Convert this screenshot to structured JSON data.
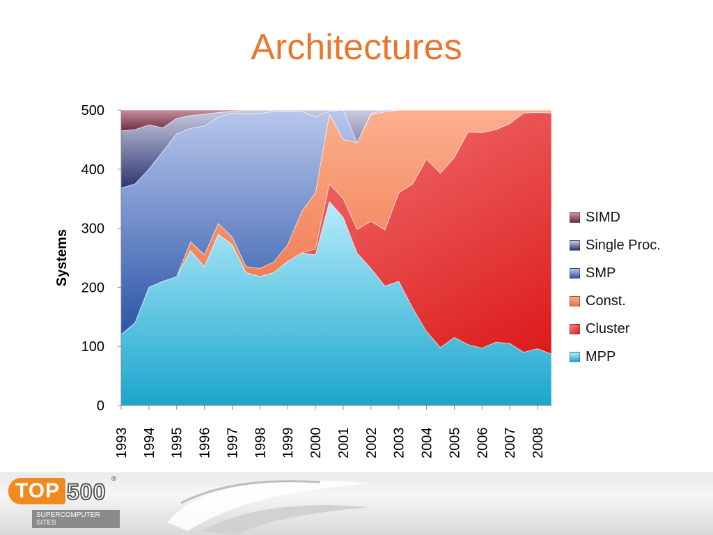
{
  "slide": {
    "title": "Architectures"
  },
  "logo": {
    "name": "TOP500",
    "tagline": "SUPERCOMPUTER SITES",
    "mark": "®"
  },
  "chart_data": {
    "type": "area",
    "stacked": true,
    "ylabel": "Systems",
    "xlabel": "",
    "ylim": [
      0,
      500
    ],
    "yticks": [
      0,
      100,
      200,
      300,
      400,
      500
    ],
    "x_tick_labels": [
      "1993",
      "1994",
      "1995",
      "1996",
      "1997",
      "1998",
      "1999",
      "2000",
      "2001",
      "2002",
      "2003",
      "2004",
      "2005",
      "2006",
      "2007",
      "2008"
    ],
    "x": [
      1993.0,
      1993.5,
      1994.0,
      1994.5,
      1995.0,
      1995.5,
      1996.0,
      1996.5,
      1997.0,
      1997.5,
      1998.0,
      1998.5,
      1999.0,
      1999.5,
      2000.0,
      2000.5,
      2001.0,
      2001.5,
      2002.0,
      2002.5,
      2003.0,
      2003.5,
      2004.0,
      2004.5,
      2005.0,
      2005.5,
      2006.0,
      2006.5,
      2007.0,
      2007.5,
      2008.0,
      2008.5
    ],
    "legend_position": "right",
    "series": [
      {
        "name": "MPP",
        "color": "#5bc8e8",
        "values": [
          120,
          140,
          200,
          210,
          218,
          262,
          235,
          290,
          272,
          225,
          218,
          225,
          244,
          258,
          255,
          345,
          318,
          258,
          232,
          202,
          210,
          165,
          125,
          98,
          115,
          103,
          97,
          107,
          105,
          90,
          96,
          87
        ]
      },
      {
        "name": "Cluster",
        "color": "#e84848",
        "values": [
          0,
          0,
          0,
          0,
          0,
          0,
          0,
          0,
          0,
          0,
          0,
          0,
          0,
          0,
          10,
          30,
          32,
          40,
          80,
          95,
          150,
          210,
          292,
          295,
          305,
          360,
          365,
          360,
          372,
          405,
          400,
          408
        ]
      },
      {
        "name": "Const.",
        "color": "#f4845a",
        "values": [
          0,
          0,
          0,
          0,
          0,
          15,
          20,
          18,
          13,
          10,
          14,
          18,
          28,
          70,
          95,
          118,
          100,
          147,
          180,
          200,
          140,
          125,
          83,
          107,
          80,
          37,
          38,
          33,
          23,
          5,
          4,
          5
        ]
      },
      {
        "name": "SMP",
        "color": "#8fa3d8",
        "values": [
          248,
          235,
          200,
          220,
          242,
          192,
          218,
          180,
          210,
          258,
          262,
          255,
          225,
          170,
          128,
          5,
          50,
          0,
          2,
          3,
          0,
          0,
          0,
          0,
          0,
          0,
          0,
          0,
          0,
          0,
          0,
          0
        ]
      },
      {
        "name": "Single Proc.",
        "color": "#5a5f8a",
        "values": [
          97,
          92,
          75,
          40,
          26,
          22,
          20,
          8,
          3,
          7,
          6,
          2,
          3,
          2,
          12,
          2,
          0,
          55,
          6,
          0,
          0,
          0,
          0,
          0,
          0,
          0,
          0,
          0,
          0,
          0,
          0,
          0
        ]
      },
      {
        "name": "SIMD",
        "color": "#9a5a6a",
        "values": [
          35,
          33,
          25,
          30,
          14,
          9,
          7,
          4,
          2,
          0,
          0,
          0,
          0,
          0,
          0,
          0,
          0,
          0,
          0,
          0,
          0,
          0,
          0,
          0,
          0,
          0,
          0,
          0,
          0,
          0,
          0,
          0
        ]
      }
    ]
  }
}
